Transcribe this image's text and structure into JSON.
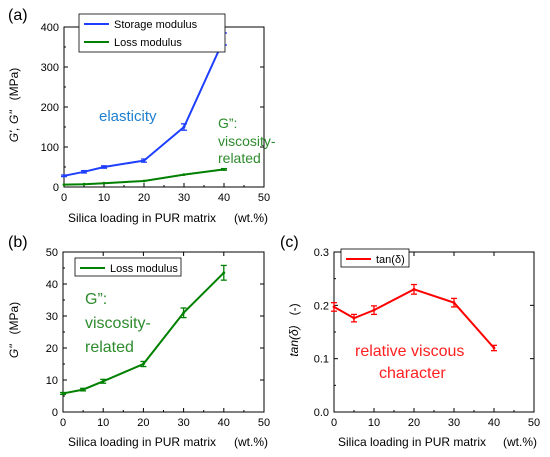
{
  "chart_data": [
    {
      "panel_label": "(a)",
      "type": "line",
      "xlabel": "Silica loading in PUR matrix",
      "xunit": "(wt.%)",
      "ylabel": "G', G\"",
      "yunit": "(MPa)",
      "xlim": [
        0,
        50
      ],
      "ylim": [
        0,
        400
      ],
      "xticks": [
        0,
        10,
        20,
        30,
        40,
        50
      ],
      "yticks": [
        0,
        100,
        200,
        300,
        400
      ],
      "legend_position": "top-left",
      "series": [
        {
          "name": "Storage modulus",
          "color": "#1f3fff",
          "x": [
            0,
            5,
            10,
            20,
            30,
            40
          ],
          "y": [
            28,
            38,
            50,
            66,
            150,
            370
          ],
          "err": [
            2,
            3,
            3,
            4,
            8,
            15
          ]
        },
        {
          "name": "Loss modulus",
          "color": "#008000",
          "x": [
            0,
            5,
            10,
            20,
            30,
            40
          ],
          "y": [
            6,
            7,
            9.5,
            15,
            31,
            44
          ],
          "err": [
            0.5,
            0.5,
            0.6,
            0.8,
            1.5,
            2
          ]
        }
      ],
      "annotations": [
        {
          "text": "elasticity",
          "color": "#1f7fcf"
        },
        {
          "text": "G”:",
          "color": "#2e8b2e"
        },
        {
          "text": "viscosity-",
          "color": "#2e8b2e"
        },
        {
          "text": "related",
          "color": "#2e8b2e"
        }
      ]
    },
    {
      "panel_label": "(b)",
      "type": "line",
      "xlabel": "Silica loading in PUR matrix",
      "xunit": "(wt.%)",
      "ylabel": "G\"",
      "yunit": "(MPa)",
      "xlim": [
        0,
        50
      ],
      "ylim": [
        0,
        50
      ],
      "xticks": [
        0,
        10,
        20,
        30,
        40,
        50
      ],
      "yticks": [
        0,
        10,
        20,
        30,
        40,
        50
      ],
      "legend_position": "top-left",
      "series": [
        {
          "name": "Loss modulus",
          "color": "#008000",
          "x": [
            0,
            5,
            10,
            20,
            30,
            40
          ],
          "y": [
            5.8,
            7,
            9.6,
            15,
            31,
            43.5
          ],
          "err": [
            0.3,
            0.4,
            0.6,
            0.8,
            1.5,
            2.3
          ]
        }
      ],
      "annotations": [
        {
          "text": "G”:",
          "color": "#2e8b2e"
        },
        {
          "text": "viscosity-",
          "color": "#2e8b2e"
        },
        {
          "text": "related",
          "color": "#2e8b2e"
        }
      ]
    },
    {
      "panel_label": "(c)",
      "type": "line",
      "xlabel": "Silica loading in PUR matrix",
      "xunit": "(wt.%)",
      "ylabel": "tan(δ)",
      "yunit": "(-)",
      "xlim": [
        0,
        50
      ],
      "ylim": [
        0,
        0.3
      ],
      "xticks": [
        0,
        10,
        20,
        30,
        40,
        50
      ],
      "yticks": [
        "0.0",
        "0.1",
        "0.2",
        "0.3"
      ],
      "legend_position": "top-left",
      "series": [
        {
          "name": "tan(δ)",
          "color": "#ff0000",
          "x": [
            0,
            5,
            10,
            20,
            30,
            40
          ],
          "y": [
            0.197,
            0.176,
            0.191,
            0.23,
            0.205,
            0.12
          ],
          "err": [
            0.008,
            0.007,
            0.008,
            0.009,
            0.008,
            0.005
          ]
        }
      ],
      "annotations": [
        {
          "text": "relative viscous",
          "color": "#ff2020"
        },
        {
          "text": "character",
          "color": "#ff2020"
        }
      ]
    }
  ]
}
